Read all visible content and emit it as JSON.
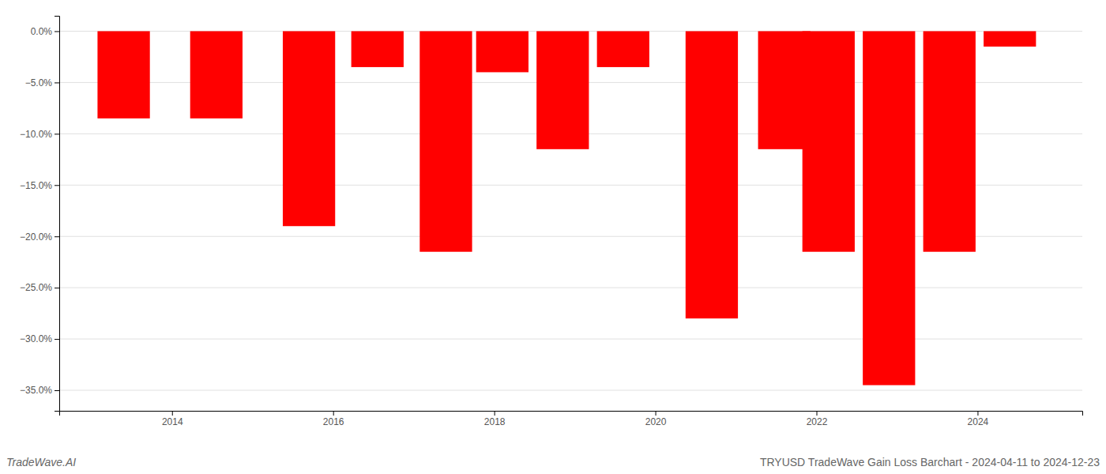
{
  "chart_data": {
    "type": "bar",
    "title": "TRYUSD TradeWave Gain Loss Barchart - 2024-04-11 to 2024-12-23",
    "annotations": [
      "TradeWave.AI"
    ],
    "x": [
      2013.4,
      2014.55,
      2015.7,
      2016.55,
      2017.4,
      2018.1,
      2018.85,
      2019.6,
      2020.7,
      2021.6,
      2022.15,
      2022.9,
      2023.65,
      2024.4
    ],
    "values": [
      -8.5,
      -8.5,
      -19.0,
      -3.5,
      -21.5,
      -4.0,
      -11.5,
      -3.5,
      -28.0,
      -11.5,
      -21.5,
      -34.5,
      -21.5,
      -1.5
    ],
    "color": "#ff0000",
    "xlim": [
      2012.6,
      2025.3
    ],
    "xticks": [
      2014,
      2016,
      2018,
      2020,
      2022,
      2024
    ],
    "ylim": [
      -37,
      1.5
    ],
    "yticks": [
      {
        "value": 0.0,
        "label": "0.0%"
      },
      {
        "value": -5.0,
        "label": "−5.0%"
      },
      {
        "value": -10.0,
        "label": "−10.0%"
      },
      {
        "value": -15.0,
        "label": "−15.0%"
      },
      {
        "value": -20.0,
        "label": "−20.0%"
      },
      {
        "value": -25.0,
        "label": "−25.0%"
      },
      {
        "value": -30.0,
        "label": "−30.0%"
      },
      {
        "value": -35.0,
        "label": "−35.0%"
      }
    ],
    "grid": true
  }
}
